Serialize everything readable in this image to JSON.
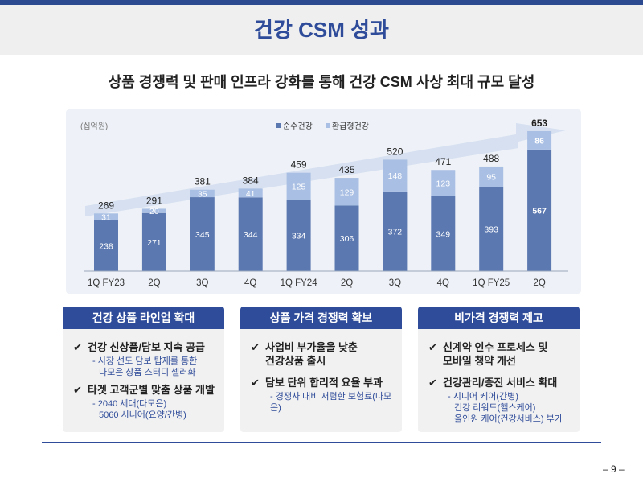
{
  "header": {
    "title": "건강 CSM 성과"
  },
  "subtitle": "상품 경쟁력 및 판매 인프라 강화를 통해 건강 CSM 사상 최대 규모 달성",
  "colors": {
    "accent": "#2f4c9a",
    "pure": "#5b78b0",
    "refund": "#a9bfe3",
    "arrow": "#d6e0f0"
  },
  "chart_data": {
    "type": "bar",
    "stacked": true,
    "unit_label": "(십억원)",
    "categories": [
      "1Q FY23",
      "2Q",
      "3Q",
      "4Q",
      "1Q FY24",
      "2Q",
      "3Q",
      "4Q",
      "1Q FY25",
      "2Q"
    ],
    "series": [
      {
        "name": "순수건강",
        "values": [
          238,
          271,
          345,
          344,
          334,
          306,
          372,
          349,
          393,
          567
        ]
      },
      {
        "name": "환급형건강",
        "values": [
          31,
          20,
          35,
          41,
          125,
          129,
          148,
          123,
          95,
          86
        ]
      }
    ],
    "totals": [
      269,
      291,
      381,
      384,
      459,
      435,
      520,
      471,
      488,
      653
    ],
    "legend_position": "top-center",
    "ylim": [
      0,
      700
    ]
  },
  "cards": [
    {
      "title": "건강 상품 라인업 확대",
      "items": [
        {
          "text": "건강 신상품/담보 지속 공급",
          "subs": [
            "- 시장 선도 담보 탑재를 통한",
            "다모은 상품 스터디 셀러화"
          ]
        },
        {
          "text": "타겟 고객군별 맞춤 상품 개발",
          "subs": [
            "- 2040 세대(다모은)",
            "5060 시니어(요양/간병)"
          ]
        }
      ]
    },
    {
      "title": "상품 가격 경쟁력 확보",
      "items": [
        {
          "text": "사업비 부가율을 낮춘",
          "text2": "건강상품 출시",
          "subs": []
        },
        {
          "text": "담보 단위 합리적 요율 부과",
          "subs": [
            "- 경쟁사 대비 저렴한 보험료(다모은)"
          ]
        }
      ]
    },
    {
      "title": "비가격 경쟁력 제고",
      "items": [
        {
          "text": "신계약 인수 프로세스 및",
          "text2": "모바일 청약 개선",
          "subs": []
        },
        {
          "text": "건강관리/증진 서비스 확대",
          "subs": [
            "- 시니어 케어(간병)",
            "건강 리워드(헬스케어)",
            "올인원 케어(건강서비스) 부가"
          ]
        }
      ]
    }
  ],
  "footer": {
    "page": "– 9 –"
  }
}
